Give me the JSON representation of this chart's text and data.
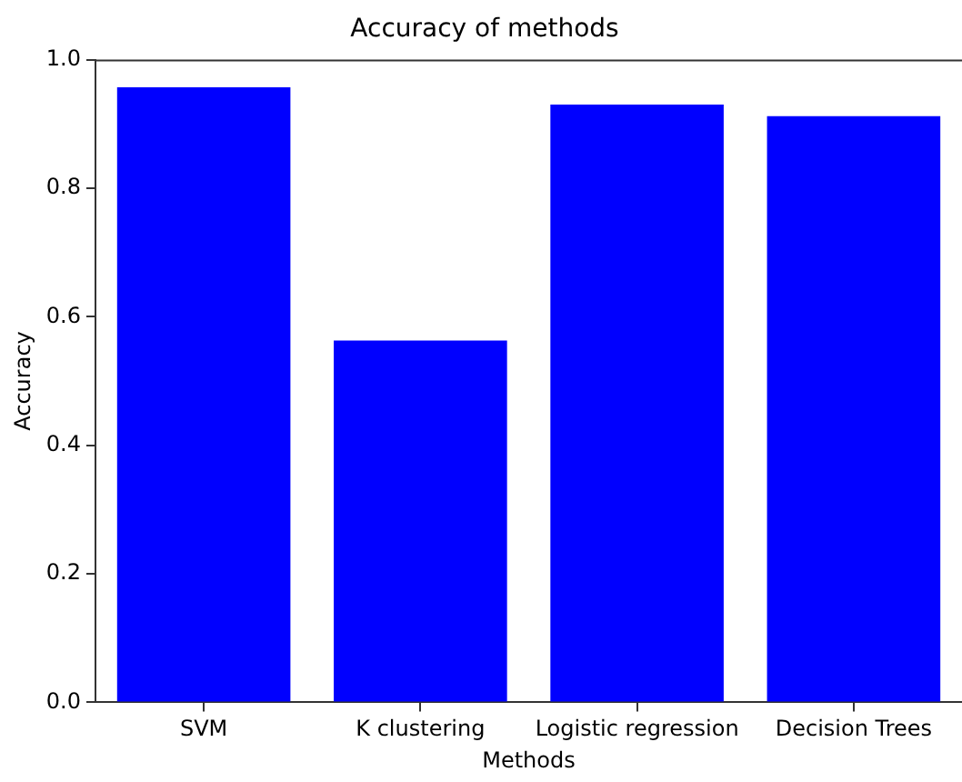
{
  "chart_data": {
    "type": "bar",
    "title": "Accuracy of methods",
    "xlabel": "Methods",
    "ylabel": "Accuracy",
    "categories": [
      "SVM",
      "K clustering",
      "Logistic regression",
      "Decision Trees"
    ],
    "values": [
      0.957,
      0.563,
      0.93,
      0.912
    ],
    "color": "#0000ff",
    "ylim": [
      0,
      1
    ],
    "yticks": [
      {
        "value": 0,
        "label": "0.0"
      },
      {
        "value": 0.2,
        "label": "0.2"
      },
      {
        "value": 0.4,
        "label": "0.4"
      },
      {
        "value": 0.6,
        "label": "0.6"
      },
      {
        "value": 0.8,
        "label": "0.8"
      },
      {
        "value": 1,
        "label": "1.0"
      }
    ],
    "grid": false,
    "legend": false
  }
}
